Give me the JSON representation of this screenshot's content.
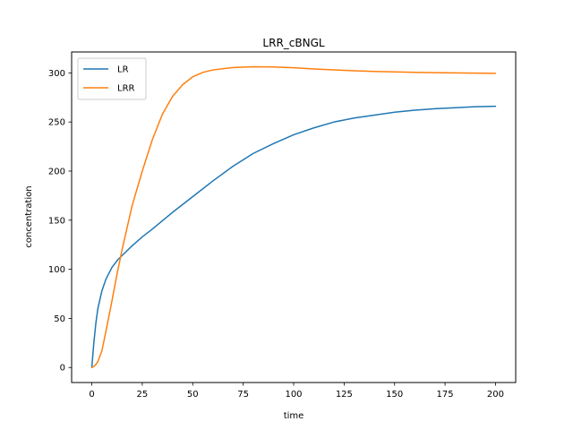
{
  "chart_data": {
    "type": "line",
    "title": "LRR_cBNGL",
    "xlabel": "time",
    "ylabel": "concentration",
    "xlim": [
      -10,
      210
    ],
    "ylim": [
      -15.3,
      321.3
    ],
    "x_ticks": [
      0,
      25,
      50,
      75,
      100,
      125,
      150,
      175,
      200
    ],
    "y_ticks": [
      0,
      50,
      100,
      150,
      200,
      250,
      300
    ],
    "grid": false,
    "legend_position": "upper-left",
    "series": [
      {
        "name": "LR",
        "color": "#1f77b4",
        "points": [
          [
            0,
            0
          ],
          [
            1,
            25
          ],
          [
            2,
            45
          ],
          [
            3,
            60
          ],
          [
            5,
            78
          ],
          [
            7,
            90
          ],
          [
            10,
            102
          ],
          [
            13,
            110
          ],
          [
            15,
            114
          ],
          [
            20,
            124
          ],
          [
            25,
            133
          ],
          [
            30,
            141
          ],
          [
            40,
            158
          ],
          [
            50,
            174
          ],
          [
            60,
            190
          ],
          [
            70,
            205
          ],
          [
            80,
            218
          ],
          [
            90,
            228
          ],
          [
            100,
            237
          ],
          [
            110,
            244
          ],
          [
            120,
            250
          ],
          [
            130,
            254
          ],
          [
            140,
            257
          ],
          [
            150,
            260
          ],
          [
            160,
            262
          ],
          [
            170,
            263.5
          ],
          [
            180,
            264.5
          ],
          [
            190,
            265.5
          ],
          [
            200,
            266
          ]
        ]
      },
      {
        "name": "LRR",
        "color": "#ff7f0e",
        "points": [
          [
            0,
            0
          ],
          [
            1,
            1
          ],
          [
            2,
            3
          ],
          [
            3,
            6
          ],
          [
            5,
            17
          ],
          [
            7,
            37
          ],
          [
            10,
            68
          ],
          [
            12,
            90
          ],
          [
            15,
            120
          ],
          [
            20,
            165
          ],
          [
            25,
            200
          ],
          [
            30,
            232
          ],
          [
            35,
            258
          ],
          [
            40,
            276
          ],
          [
            45,
            288
          ],
          [
            50,
            296
          ],
          [
            55,
            300.5
          ],
          [
            60,
            303
          ],
          [
            70,
            305.5
          ],
          [
            80,
            306.2
          ],
          [
            90,
            306
          ],
          [
            100,
            305.2
          ],
          [
            110,
            304
          ],
          [
            120,
            303
          ],
          [
            130,
            302.2
          ],
          [
            140,
            301.5
          ],
          [
            150,
            301
          ],
          [
            160,
            300.5
          ],
          [
            170,
            300.2
          ],
          [
            180,
            300
          ],
          [
            190,
            299.8
          ],
          [
            200,
            299.5
          ]
        ]
      }
    ]
  }
}
